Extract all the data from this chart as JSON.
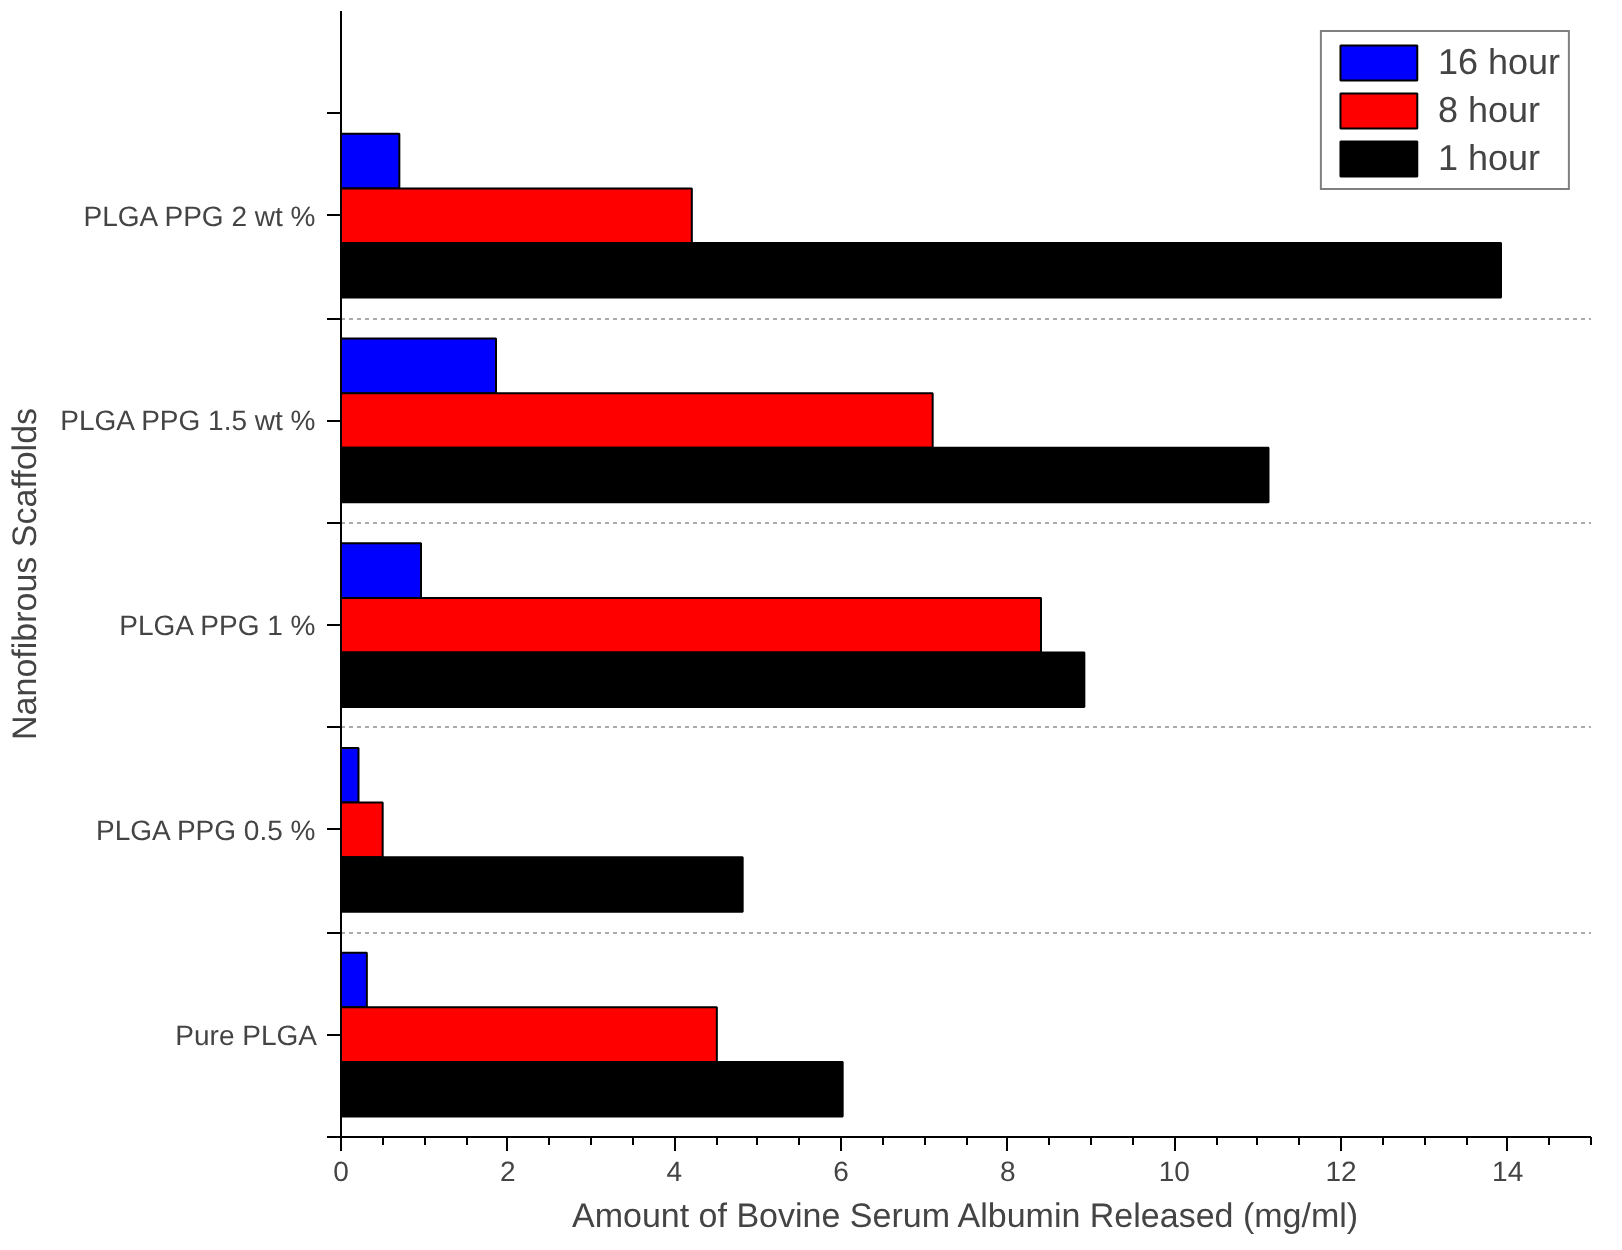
{
  "chart_data": {
    "type": "bar",
    "orientation": "horizontal",
    "xlabel": "Amount of Bovine Serum Albumin Released (mg/ml)",
    "ylabel": "Nanofibrous Scaffolds",
    "categories": [
      "PLGA PPG 2 wt %",
      "PLGA PPG 1.5 wt %",
      "PLGA PPG 1 %",
      "PLGA PPG 0.5 %",
      "Pure PLGA"
    ],
    "series": [
      {
        "name": "16 hour",
        "color": "#0000ff",
        "values": [
          0.7,
          1.86,
          0.96,
          0.21,
          0.31
        ]
      },
      {
        "name": "8 hour",
        "color": "#ff0000",
        "values": [
          4.21,
          7.1,
          8.4,
          0.5,
          4.51
        ]
      },
      {
        "name": "1 hour",
        "color": "#000000",
        "values": [
          13.92,
          11.13,
          8.92,
          4.82,
          6.02
        ]
      }
    ],
    "xlim": [
      0,
      15
    ],
    "xticks": [
      0,
      2,
      4,
      6,
      8,
      10,
      12,
      14
    ],
    "grid": "y",
    "legend": "top right"
  }
}
